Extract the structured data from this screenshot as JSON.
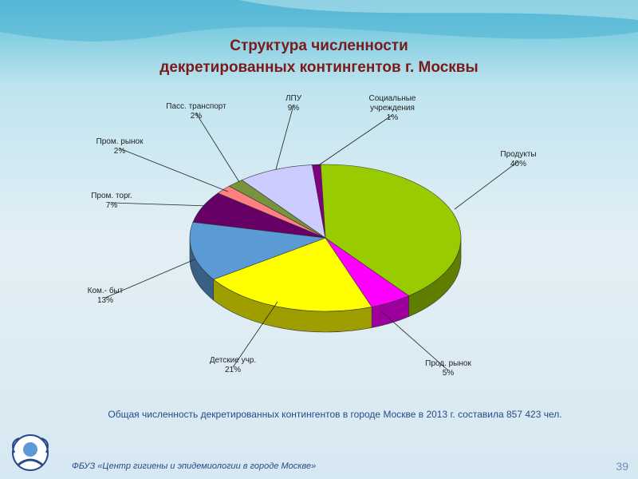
{
  "slide": {
    "title_line1": "Структура численности",
    "title_line2": "декретированных контингентов  г. Москвы",
    "summary": "Общая численность декретированных контингентов в городе Москве в 2013 г. составила 857 423 чел.",
    "footer": "ФБУЗ «Центр гигиены и эпидемиологии в городе Москве»",
    "page_number": "39"
  },
  "colors": {
    "title": "#7a1a1a",
    "summary": "#274a8a",
    "page_number": "#6d8fb8"
  },
  "chart_data": {
    "type": "pie",
    "title": "Структура численности декретированных контингентов  г. Москвы",
    "style": "3d",
    "legend": "none",
    "slices": [
      {
        "label": "Продукты",
        "value_label": "40%",
        "value": 40,
        "color": "#99cc00"
      },
      {
        "label": "Прод. рынок",
        "value_label": "5%",
        "value": 5,
        "color": "#ff00ff"
      },
      {
        "label": "Детские учр.",
        "value_label": "21%",
        "value": 21,
        "color": "#ffff00"
      },
      {
        "label": "Ком.- быт",
        "value_label": "13%",
        "value": 13,
        "color": "#5b9bd5"
      },
      {
        "label": "Пром. торг.",
        "value_label": "7%",
        "value": 7,
        "color": "#660066"
      },
      {
        "label": "Пром. рынок",
        "value_label": "2%",
        "value": 2,
        "color": "#ff8080"
      },
      {
        "label": "Пасс. транспорт",
        "value_label": "2%",
        "value": 2,
        "color": "#77933c"
      },
      {
        "label": "ЛПУ",
        "value_label": "9%",
        "value": 9,
        "color": "#ccccff"
      },
      {
        "label": "Социальные учреждения",
        "value_label": "1%",
        "value": 1,
        "color": "#800080"
      }
    ]
  }
}
